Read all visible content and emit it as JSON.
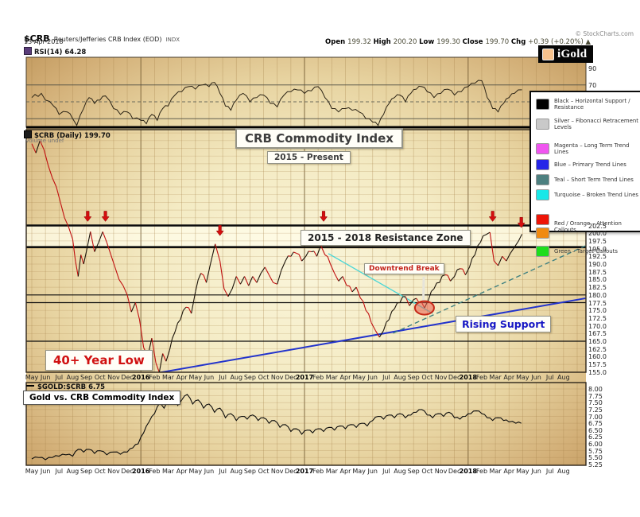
{
  "header": {
    "symbol": "$CRB",
    "description": "Reuters/Jefferies CRB Index (EOD)",
    "exchange": "INDX",
    "date": "13-Apr-2018",
    "copyright": "© StockCharts.com",
    "quote": [
      {
        "label": "Open",
        "value": "199.32"
      },
      {
        "label": "High",
        "value": "200.20"
      },
      {
        "label": "Low",
        "value": "199.30"
      },
      {
        "label": "Close",
        "value": "199.70"
      },
      {
        "label": "Chg",
        "value": "+0.39 (+0.20%) ▲"
      }
    ]
  },
  "logo": {
    "text": "iGold"
  },
  "rsi_panel": {
    "label": "RSI(14) 64.28",
    "visible_ticks": [
      90,
      70
    ],
    "ref_lines": [
      70,
      50,
      30
    ]
  },
  "main_panel": {
    "label": "$CRB (Daily) 199.70",
    "volume_label": "Volume undef",
    "price_ticks": [
      202.5,
      200.0,
      197.5,
      195.0,
      192.5,
      190.0,
      187.5,
      185.0,
      182.5,
      180.0,
      177.5,
      175.0,
      172.5,
      170.0,
      167.5,
      165.0,
      162.5,
      160.0,
      157.5,
      155.0
    ],
    "annotations": {
      "title": "CRB Commodity Index",
      "subtitle": "2015 - Present",
      "resistance_zone": "2015 - 2018 Resistance Zone",
      "downtrend_break": "Downtrend Break",
      "rising_support": "Rising Support",
      "year_low": "40+ Year Low"
    }
  },
  "ratio_panel": {
    "label": "$GOLD:$CRB 6.75",
    "box_label": "Gold vs. CRB Commodity Index",
    "ticks": [
      "8.00",
      "7.75",
      "7.50",
      "7.25",
      "7.00",
      "6.75",
      "6.50",
      "6.25",
      "6.00",
      "5.75",
      "5.50",
      "5.25"
    ]
  },
  "x_axis": {
    "months": [
      "May",
      "Jun",
      "Jul",
      "Aug",
      "Sep",
      "Oct",
      "Nov",
      "Dec",
      "2016",
      "Feb",
      "Mar",
      "Apr",
      "May",
      "Jun",
      "Jul",
      "Aug",
      "Sep",
      "Oct",
      "Nov",
      "Dec",
      "2017",
      "Feb",
      "Mar",
      "Apr",
      "May",
      "Jun",
      "Jul",
      "Aug",
      "Sep",
      "Oct",
      "Nov",
      "Dec",
      "2018",
      "Feb",
      "Mar",
      "Apr",
      "May",
      "Jun",
      "Jul",
      "Aug"
    ],
    "year_labels": [
      "2016",
      "2017",
      "2018"
    ]
  },
  "legend": {
    "items": [
      {
        "swatches": [
          "#000000"
        ],
        "label": "Black – Horizontal Support / Resistance",
        "gap_after": 4
      },
      {
        "swatches": [
          "#c9c9c9"
        ],
        "label": "Silver – Fibonacci Retracement Levels",
        "gap_after": 10
      },
      {
        "swatches": [
          "#f055f0"
        ],
        "label": "Magenta – Long Term Trend Lines",
        "gap_after": 0
      },
      {
        "swatches": [
          "#2525e8"
        ],
        "label": "Blue – Primary Trend Lines",
        "gap_after": 0
      },
      {
        "swatches": [
          "#4d8080"
        ],
        "label": "Teal – Short Term Trend Lines",
        "gap_after": 0
      },
      {
        "swatches": [
          "#19e8e8"
        ],
        "label": "Turquoise – Broken Trend Lines",
        "gap_after": 12
      },
      {
        "swatches": [
          "#ee1507",
          "#f08a10"
        ],
        "label": "Red / Orange – Attention Callouts",
        "gap_after": 4
      },
      {
        "swatches": [
          "#1ddd1d"
        ],
        "label": "Green – Target Callouts",
        "gap_after": 0
      }
    ]
  },
  "chart_data": [
    {
      "type": "line",
      "name": "RSI(14)",
      "panel": "rsi",
      "ylim": [
        0,
        100
      ],
      "x_unit": "months-since-May-2015",
      "points": [
        [
          0,
          55
        ],
        [
          0.7,
          60
        ],
        [
          1,
          52
        ],
        [
          1.6,
          45
        ],
        [
          2,
          35
        ],
        [
          2.6,
          38
        ],
        [
          3,
          30
        ],
        [
          3.3,
          22
        ],
        [
          3.8,
          42
        ],
        [
          4.2,
          55
        ],
        [
          4.6,
          48
        ],
        [
          5,
          52
        ],
        [
          5.4,
          57
        ],
        [
          6,
          42
        ],
        [
          6.5,
          35
        ],
        [
          7,
          38
        ],
        [
          7.4,
          30
        ],
        [
          8,
          28
        ],
        [
          8.4,
          24
        ],
        [
          8.8,
          35
        ],
        [
          9.2,
          28
        ],
        [
          9.6,
          42
        ],
        [
          10,
          45
        ],
        [
          10.5,
          58
        ],
        [
          11,
          62
        ],
        [
          11.5,
          68
        ],
        [
          12,
          65
        ],
        [
          12.5,
          70
        ],
        [
          13,
          68
        ],
        [
          13.4,
          73
        ],
        [
          13.8,
          60
        ],
        [
          14.2,
          45
        ],
        [
          14.6,
          40
        ],
        [
          15,
          52
        ],
        [
          15.5,
          60
        ],
        [
          16,
          50
        ],
        [
          16.5,
          55
        ],
        [
          17,
          58
        ],
        [
          17.5,
          48
        ],
        [
          18,
          44
        ],
        [
          18.5,
          58
        ],
        [
          19,
          62
        ],
        [
          19.5,
          64
        ],
        [
          20,
          60
        ],
        [
          20.5,
          63
        ],
        [
          21,
          68
        ],
        [
          21.5,
          55
        ],
        [
          22,
          42
        ],
        [
          22.5,
          38
        ],
        [
          23,
          42
        ],
        [
          23.5,
          40
        ],
        [
          24,
          38
        ],
        [
          24.5,
          30
        ],
        [
          25,
          26
        ],
        [
          25.4,
          22
        ],
        [
          25.8,
          35
        ],
        [
          26.2,
          48
        ],
        [
          26.6,
          55
        ],
        [
          27,
          58
        ],
        [
          27.4,
          50
        ],
        [
          27.8,
          60
        ],
        [
          28.2,
          65
        ],
        [
          28.6,
          68
        ],
        [
          29,
          62
        ],
        [
          29.5,
          55
        ],
        [
          30,
          60
        ],
        [
          30.5,
          65
        ],
        [
          31,
          58
        ],
        [
          31.5,
          62
        ],
        [
          32,
          68
        ],
        [
          32.5,
          72
        ],
        [
          33,
          75
        ],
        [
          33.4,
          55
        ],
        [
          33.8,
          42
        ],
        [
          34.2,
          38
        ],
        [
          34.6,
          48
        ],
        [
          35,
          55
        ],
        [
          35.4,
          60
        ],
        [
          35.95,
          64.28
        ]
      ]
    },
    {
      "type": "ohlc-line",
      "name": "$CRB Daily",
      "panel": "main",
      "ylim": [
        155,
        233
      ],
      "x_unit": "months-since-May-2015",
      "points": [
        [
          0,
          229
        ],
        [
          0.3,
          226
        ],
        [
          0.6,
          230
        ],
        [
          0.9,
          227
        ],
        [
          1.2,
          222
        ],
        [
          1.5,
          218
        ],
        [
          1.8,
          215
        ],
        [
          2.1,
          210
        ],
        [
          2.4,
          205
        ],
        [
          2.7,
          202
        ],
        [
          3,
          198
        ],
        [
          3.2,
          191
        ],
        [
          3.4,
          186
        ],
        [
          3.6,
          193
        ],
        [
          3.8,
          190
        ],
        [
          4,
          194
        ],
        [
          4.3,
          200.5
        ],
        [
          4.6,
          194
        ],
        [
          4.9,
          197
        ],
        [
          5.2,
          200.5
        ],
        [
          5.5,
          197
        ],
        [
          5.8,
          193
        ],
        [
          6.1,
          189
        ],
        [
          6.4,
          185
        ],
        [
          6.7,
          183
        ],
        [
          7,
          180
        ],
        [
          7.3,
          174.5
        ],
        [
          7.6,
          177.5
        ],
        [
          7.9,
          172
        ],
        [
          8.2,
          163
        ],
        [
          8.5,
          160
        ],
        [
          8.8,
          166
        ],
        [
          9.1,
          158
        ],
        [
          9.35,
          154.9
        ],
        [
          9.6,
          161
        ],
        [
          9.85,
          158.5
        ],
        [
          10.1,
          162
        ],
        [
          10.5,
          168
        ],
        [
          10.9,
          172
        ],
        [
          11.3,
          176
        ],
        [
          11.7,
          174
        ],
        [
          12,
          181
        ],
        [
          12.4,
          187
        ],
        [
          12.8,
          184
        ],
        [
          13.1,
          190
        ],
        [
          13.45,
          196.5
        ],
        [
          13.8,
          191
        ],
        [
          14.1,
          182
        ],
        [
          14.4,
          179.5
        ],
        [
          14.7,
          182
        ],
        [
          15,
          186
        ],
        [
          15.3,
          183.5
        ],
        [
          15.6,
          186
        ],
        [
          15.9,
          183
        ],
        [
          16.2,
          186
        ],
        [
          16.5,
          184
        ],
        [
          16.8,
          187
        ],
        [
          17.1,
          189
        ],
        [
          17.4,
          186.5
        ],
        [
          17.7,
          184
        ],
        [
          18,
          183.5
        ],
        [
          18.3,
          188
        ],
        [
          18.6,
          191
        ],
        [
          19,
          192.5
        ],
        [
          19.4,
          193.5
        ],
        [
          19.8,
          191
        ],
        [
          20.1,
          192.5
        ],
        [
          20.5,
          194
        ],
        [
          20.9,
          192.5
        ],
        [
          21.2,
          196
        ],
        [
          21.5,
          193
        ],
        [
          21.9,
          190
        ],
        [
          22.2,
          187
        ],
        [
          22.5,
          184.5
        ],
        [
          22.8,
          186
        ],
        [
          23.1,
          183
        ],
        [
          23.5,
          181
        ],
        [
          23.8,
          182.5
        ],
        [
          24.1,
          179
        ],
        [
          24.5,
          175
        ],
        [
          24.9,
          171
        ],
        [
          25.2,
          168.5
        ],
        [
          25.5,
          166.3
        ],
        [
          25.8,
          168.5
        ],
        [
          26.2,
          172
        ],
        [
          26.6,
          175.5
        ],
        [
          27,
          177.5
        ],
        [
          27.4,
          179.5
        ],
        [
          27.7,
          176.5
        ],
        [
          28,
          178.5
        ],
        [
          28.4,
          177.5
        ],
        [
          28.8,
          175.8
        ],
        [
          29.1,
          178.5
        ],
        [
          29.5,
          182
        ],
        [
          29.9,
          184
        ],
        [
          30.3,
          186.5
        ],
        [
          30.7,
          184.5
        ],
        [
          31,
          186
        ],
        [
          31.4,
          188.5
        ],
        [
          31.8,
          186.5
        ],
        [
          32.1,
          189
        ],
        [
          32.5,
          193
        ],
        [
          32.9,
          197
        ],
        [
          33.3,
          199.5
        ],
        [
          33.6,
          200.3
        ],
        [
          33.9,
          191
        ],
        [
          34.2,
          189.5
        ],
        [
          34.5,
          192.5
        ],
        [
          34.8,
          191
        ],
        [
          35.1,
          193.5
        ],
        [
          35.4,
          195.5
        ],
        [
          35.7,
          197.5
        ],
        [
          35.95,
          199.7
        ]
      ],
      "support_resistance_levels": [
        202.5,
        195.5,
        180.0,
        177.5,
        165.0
      ],
      "resistance_zone": {
        "top": 202.5,
        "bottom": 195.5
      },
      "arrows": [
        [
          4.1,
          203.8
        ],
        [
          5.4,
          203.8
        ],
        [
          13.8,
          199.2
        ],
        [
          21.4,
          203.8
        ],
        [
          33.8,
          203.8
        ],
        [
          35.9,
          201.8
        ]
      ],
      "trend_lines": [
        {
          "name": "rising-support",
          "color": "#2233cc",
          "style": "solid",
          "width": 2,
          "from": [
            9.2,
            154.7
          ],
          "to": [
            40.6,
            178.9
          ]
        },
        {
          "name": "short-term-trend",
          "color": "#3f8080",
          "style": "dashed",
          "width": 1.4,
          "from": [
            26.5,
            167.6
          ],
          "to": [
            40.6,
            195.9
          ]
        },
        {
          "name": "broken-downtrend",
          "color": "#49d6d6",
          "style": "solid",
          "width": 1.4,
          "from": [
            21.75,
            193.4
          ],
          "to": [
            29.4,
            174.0
          ]
        }
      ],
      "highlight_oval": {
        "month": 28.8,
        "price": 175.8
      }
    },
    {
      "type": "line",
      "name": "$GOLD:$CRB",
      "panel": "ratio",
      "ylim": [
        5.25,
        8.0
      ],
      "x_unit": "months-since-May-2015",
      "points": [
        [
          0,
          5.45
        ],
        [
          0.5,
          5.5
        ],
        [
          1,
          5.42
        ],
        [
          1.5,
          5.5
        ],
        [
          2,
          5.55
        ],
        [
          2.5,
          5.6
        ],
        [
          3,
          5.55
        ],
        [
          3.4,
          5.8
        ],
        [
          3.8,
          5.7
        ],
        [
          4.2,
          5.8
        ],
        [
          4.6,
          5.65
        ],
        [
          5,
          5.75
        ],
        [
          5.5,
          5.6
        ],
        [
          6,
          5.7
        ],
        [
          6.5,
          5.62
        ],
        [
          7,
          5.7
        ],
        [
          7.4,
          5.85
        ],
        [
          7.8,
          6.0
        ],
        [
          8.2,
          6.4
        ],
        [
          8.6,
          6.8
        ],
        [
          9,
          7.1
        ],
        [
          9.4,
          7.5
        ],
        [
          9.7,
          7.3
        ],
        [
          10,
          7.6
        ],
        [
          10.3,
          7.85
        ],
        [
          10.7,
          7.4
        ],
        [
          11,
          7.6
        ],
        [
          11.4,
          7.8
        ],
        [
          11.8,
          7.45
        ],
        [
          12.2,
          7.6
        ],
        [
          12.6,
          7.3
        ],
        [
          13,
          7.45
        ],
        [
          13.4,
          7.15
        ],
        [
          13.8,
          7.3
        ],
        [
          14.2,
          6.95
        ],
        [
          14.6,
          7.1
        ],
        [
          15,
          6.85
        ],
        [
          15.4,
          7.0
        ],
        [
          15.8,
          6.9
        ],
        [
          16.2,
          7.05
        ],
        [
          16.6,
          6.85
        ],
        [
          17,
          6.95
        ],
        [
          17.4,
          6.75
        ],
        [
          17.8,
          6.85
        ],
        [
          18.2,
          6.6
        ],
        [
          18.6,
          6.7
        ],
        [
          19,
          6.45
        ],
        [
          19.4,
          6.55
        ],
        [
          19.8,
          6.35
        ],
        [
          20.2,
          6.5
        ],
        [
          20.6,
          6.4
        ],
        [
          21,
          6.55
        ],
        [
          21.4,
          6.45
        ],
        [
          21.8,
          6.6
        ],
        [
          22.2,
          6.5
        ],
        [
          22.6,
          6.65
        ],
        [
          23,
          6.55
        ],
        [
          23.4,
          6.7
        ],
        [
          23.8,
          6.6
        ],
        [
          24.2,
          6.75
        ],
        [
          24.6,
          6.65
        ],
        [
          25,
          6.85
        ],
        [
          25.4,
          7.0
        ],
        [
          25.8,
          6.9
        ],
        [
          26.2,
          7.05
        ],
        [
          26.6,
          6.95
        ],
        [
          27,
          7.1
        ],
        [
          27.4,
          6.95
        ],
        [
          27.8,
          7.05
        ],
        [
          28.2,
          7.15
        ],
        [
          28.6,
          7.25
        ],
        [
          29,
          7.05
        ],
        [
          29.4,
          6.95
        ],
        [
          29.8,
          7.1
        ],
        [
          30.2,
          7.0
        ],
        [
          30.6,
          7.15
        ],
        [
          31,
          6.95
        ],
        [
          31.4,
          6.9
        ],
        [
          31.8,
          7.0
        ],
        [
          32.2,
          7.1
        ],
        [
          32.6,
          7.2
        ],
        [
          33,
          7.1
        ],
        [
          33.4,
          6.95
        ],
        [
          33.8,
          6.85
        ],
        [
          34.2,
          6.95
        ],
        [
          34.6,
          6.85
        ],
        [
          35,
          6.8
        ],
        [
          35.5,
          6.75
        ],
        [
          35.9,
          6.75
        ]
      ]
    }
  ]
}
